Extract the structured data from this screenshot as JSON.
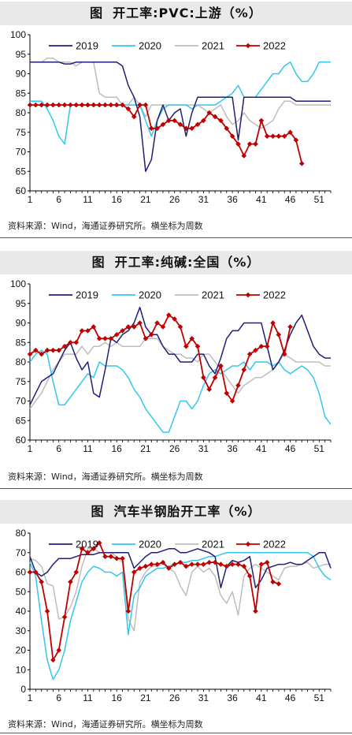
{
  "panels": [
    {
      "title_prefix": "图",
      "title": "开工率:PVC:上游（%）",
      "source": "资料来源：Wind，海通证券研究所。横坐标为周数"
    },
    {
      "title_prefix": "图",
      "title": "开工率:纯碱:全国（%）",
      "source": "资料来源：Wind，海通证券研究所。横坐标为周数"
    },
    {
      "title_prefix": "图",
      "title": "汽车半钢胎开工率（%）",
      "source": "资料来源：Wind，海通证券研究所。横坐标为周数"
    }
  ],
  "colors": {
    "2019": "#1f1f7a",
    "2020": "#33c7ee",
    "2021": "#bdbdbd",
    "2022": "#c00000"
  },
  "chart_data": [
    {
      "type": "line",
      "title": "开工率:PVC:上游（%）",
      "xticks": [
        1,
        6,
        11,
        16,
        21,
        26,
        31,
        36,
        41,
        46,
        51
      ],
      "xlim": [
        1,
        53
      ],
      "ylim": [
        60,
        100
      ],
      "yticks": [
        60,
        65,
        70,
        75,
        80,
        85,
        90,
        95,
        100
      ],
      "legend": "top",
      "series": [
        {
          "name": "2019",
          "values": [
            93,
            93,
            93,
            93,
            93,
            93,
            92.5,
            92.5,
            93,
            93,
            93,
            93,
            93,
            93,
            93,
            93,
            92,
            87,
            84,
            79,
            65,
            68,
            78,
            82,
            78,
            80,
            81,
            74,
            80,
            84,
            84,
            84,
            84,
            84,
            84,
            84,
            73,
            84,
            84,
            84,
            84,
            84,
            84,
            84,
            84,
            84,
            83,
            83,
            83,
            83,
            83,
            83,
            83
          ]
        },
        {
          "name": "2020",
          "values": [
            83,
            83,
            83,
            81,
            78,
            74,
            72,
            82,
            82,
            82,
            82,
            82,
            82,
            82,
            82,
            82,
            82,
            82,
            82,
            82,
            78,
            74,
            78,
            81,
            82,
            82,
            82,
            82,
            81,
            82,
            82,
            82,
            82,
            83,
            84,
            85,
            87,
            84,
            84,
            84,
            86,
            88,
            90,
            90,
            92,
            93,
            90,
            88,
            88,
            90,
            93,
            93,
            93
          ]
        },
        {
          "name": "2021",
          "values": [
            93,
            93,
            93,
            94,
            94,
            93,
            93,
            93,
            92,
            93,
            93,
            93,
            85,
            84,
            84,
            84,
            82,
            82,
            84,
            82,
            79,
            82,
            82,
            82,
            82,
            82,
            82,
            82,
            82,
            82,
            81,
            80,
            81,
            82,
            79,
            77,
            78,
            80,
            78,
            77,
            76,
            77,
            78,
            81,
            83,
            83,
            82,
            82,
            82,
            82,
            82,
            82,
            82
          ]
        },
        {
          "name": "2022",
          "values": [
            82,
            82,
            82,
            82,
            82,
            82,
            82,
            82,
            82,
            82,
            82,
            82,
            82,
            82,
            82,
            82,
            82,
            81,
            79,
            82,
            82,
            76,
            76,
            77,
            78,
            78,
            77,
            76,
            76,
            77,
            78,
            80,
            79,
            78,
            76,
            74,
            72,
            69,
            72,
            72,
            78,
            74,
            74,
            74,
            74,
            75,
            73,
            67,
            null,
            null,
            null,
            null,
            null
          ]
        }
      ]
    },
    {
      "type": "line",
      "title": "开工率:纯碱:全国（%）",
      "xticks": [
        1,
        6,
        11,
        16,
        21,
        26,
        31,
        36,
        41,
        46,
        51
      ],
      "xlim": [
        1,
        53
      ],
      "ylim": [
        60,
        100
      ],
      "yticks": [
        60,
        65,
        70,
        75,
        80,
        85,
        90,
        95,
        100
      ],
      "legend": "top",
      "series": [
        {
          "name": "2019",
          "values": [
            69,
            72,
            75,
            76,
            77,
            80,
            83,
            85,
            81,
            78,
            80,
            72,
            71,
            78,
            86,
            85,
            87,
            88,
            90,
            94,
            89,
            87,
            87,
            84,
            82,
            82,
            80,
            80,
            80,
            82,
            82,
            79,
            77,
            81,
            86,
            88,
            88,
            90,
            90,
            90,
            90,
            84,
            78,
            80,
            83,
            87,
            90,
            92,
            88,
            84,
            82,
            81,
            81
          ]
        },
        {
          "name": "2020",
          "values": [
            80,
            82,
            83,
            82,
            75,
            69,
            69,
            71,
            73,
            75,
            77,
            76,
            80,
            79,
            79,
            79,
            78,
            76,
            73,
            71,
            68,
            66,
            64,
            62,
            62,
            66,
            70,
            70,
            68,
            70,
            74,
            77,
            78,
            77,
            78,
            79,
            79,
            80,
            78,
            80,
            80,
            80,
            79,
            80,
            78,
            77,
            78,
            79,
            78,
            76,
            72,
            66,
            64
          ]
        },
        {
          "name": "2021",
          "values": [
            68,
            70,
            72,
            75,
            78,
            80,
            82,
            82,
            82,
            84,
            82,
            84,
            84,
            85,
            84,
            85,
            84,
            84,
            84,
            84,
            86,
            86,
            86,
            84,
            83,
            82,
            82,
            81,
            81,
            80,
            82,
            82,
            80,
            78,
            76,
            74,
            72,
            74,
            75,
            76,
            76,
            77,
            78,
            80,
            82,
            81,
            80,
            80,
            80,
            80,
            80,
            79,
            79
          ]
        },
        {
          "name": "2022",
          "values": [
            82,
            83,
            82,
            83,
            83,
            83,
            84,
            85,
            85,
            88,
            88,
            89,
            86,
            86,
            86,
            87,
            88,
            89,
            89,
            90,
            86,
            87,
            90,
            89,
            92,
            91,
            89,
            84,
            86,
            84,
            76,
            73,
            76,
            79,
            72,
            70,
            74,
            78,
            82,
            83,
            84,
            84,
            90,
            87,
            82,
            89,
            null,
            null,
            null,
            null,
            null,
            null,
            null
          ]
        }
      ]
    },
    {
      "type": "line",
      "title": "汽车半钢胎开工率（%）",
      "xticks": [
        1,
        6,
        11,
        16,
        21,
        26,
        31,
        36,
        41,
        46,
        51
      ],
      "xlim": [
        1,
        53
      ],
      "ylim": [
        0,
        80
      ],
      "yticks": [
        0,
        10,
        20,
        30,
        40,
        50,
        60,
        70,
        80
      ],
      "legend": "top",
      "series": [
        {
          "name": "2019",
          "values": [
            68,
            60,
            58,
            60,
            64,
            67,
            67,
            67,
            68,
            69,
            69,
            69,
            70,
            70,
            70,
            70,
            70,
            70,
            62,
            65,
            68,
            70,
            70,
            71,
            72,
            72,
            70,
            70,
            71,
            72,
            71,
            70,
            68,
            52,
            63,
            66,
            65,
            66,
            68,
            52,
            56,
            62,
            63,
            64,
            64,
            65,
            64,
            64,
            66,
            68,
            70,
            70,
            62
          ]
        },
        {
          "name": "2020",
          "values": [
            65,
            58,
            35,
            15,
            5,
            10,
            20,
            35,
            45,
            55,
            60,
            63,
            62,
            60,
            60,
            58,
            60,
            28,
            48,
            52,
            58,
            60,
            62,
            62,
            63,
            64,
            65,
            65,
            66,
            66,
            67,
            68,
            68,
            69,
            70,
            70,
            70,
            70,
            70,
            70,
            70,
            70,
            70,
            70,
            70,
            70,
            70,
            70,
            70,
            68,
            62,
            58,
            56
          ]
        },
        {
          "name": "2021",
          "values": [
            67,
            66,
            63,
            54,
            53,
            36,
            37,
            42,
            50,
            63,
            72,
            72,
            70,
            70,
            70,
            68,
            65,
            36,
            30,
            55,
            60,
            63,
            63,
            64,
            62,
            60,
            53,
            48,
            60,
            63,
            60,
            62,
            58,
            48,
            44,
            50,
            38,
            58,
            62,
            64,
            62,
            60,
            58,
            56,
            62,
            63,
            63,
            64,
            65,
            62,
            63,
            64,
            64
          ]
        },
        {
          "name": "2022",
          "values": [
            60,
            60,
            55,
            40,
            15,
            20,
            37,
            55,
            60,
            72,
            70,
            72,
            75,
            68,
            68,
            67,
            67,
            40,
            60,
            62,
            63,
            64,
            64,
            65,
            62,
            64,
            65,
            63,
            64,
            64,
            64,
            65,
            65,
            64,
            63,
            64,
            64,
            63,
            58,
            40,
            64,
            65,
            55,
            54,
            null,
            null,
            null,
            null,
            null,
            null,
            null,
            null,
            null
          ]
        }
      ]
    }
  ]
}
